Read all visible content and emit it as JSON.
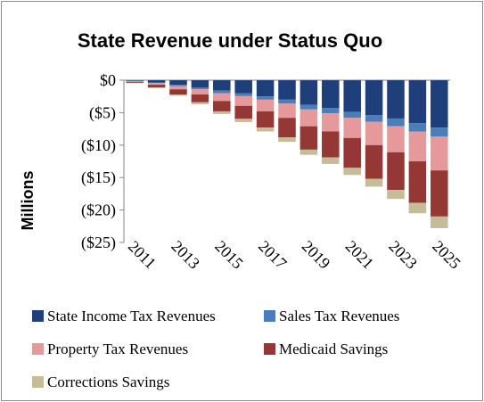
{
  "chart_data": {
    "type": "bar",
    "stacked": true,
    "title": "State Revenue under Status Quo",
    "ylabel": "Millions",
    "xlabel": "",
    "ylim": [
      -25,
      0
    ],
    "yticks": [
      0,
      -5,
      -10,
      -15,
      -20,
      -25
    ],
    "ytick_labels": [
      "$0",
      "($5)",
      "($10)",
      "($15)",
      "($20)",
      "($25)"
    ],
    "categories": [
      "2011",
      "2012",
      "2013",
      "2014",
      "2015",
      "2016",
      "2017",
      "2018",
      "2019",
      "2020",
      "2021",
      "2022",
      "2023",
      "2024",
      "2025"
    ],
    "visible_tick_labels": [
      "2011",
      "2013",
      "2015",
      "2017",
      "2019",
      "2021",
      "2023",
      "2025"
    ],
    "grid": false,
    "legend_position": "bottom",
    "series": [
      {
        "name": "State Income Tax Revenues",
        "color": "#1f3f7a",
        "values": [
          -0.1,
          -0.35,
          -0.7,
          -1.1,
          -1.6,
          -2.0,
          -2.5,
          -3.0,
          -3.8,
          -4.3,
          -4.9,
          -5.4,
          -5.9,
          -6.6,
          -7.3
        ]
      },
      {
        "name": "Sales Tax Revenues",
        "color": "#4a7ebb",
        "values": [
          -0.05,
          -0.1,
          -0.2,
          -0.3,
          -0.4,
          -0.45,
          -0.5,
          -0.6,
          -0.7,
          -0.8,
          -0.9,
          -1.0,
          -1.2,
          -1.3,
          -1.4
        ]
      },
      {
        "name": "Property Tax Revenues",
        "color": "#e6999b",
        "values": [
          -0.1,
          -0.25,
          -0.5,
          -0.8,
          -1.2,
          -1.5,
          -1.8,
          -2.2,
          -2.6,
          -2.8,
          -3.1,
          -3.6,
          -4.0,
          -4.6,
          -5.2
        ]
      },
      {
        "name": "Medicaid Savings",
        "color": "#953735",
        "values": [
          -0.15,
          -0.4,
          -0.8,
          -1.2,
          -1.6,
          -2.0,
          -2.5,
          -3.0,
          -3.6,
          -4.0,
          -4.6,
          -5.2,
          -5.8,
          -6.4,
          -7.1
        ]
      },
      {
        "name": "Corrections Savings",
        "color": "#c4bd97",
        "values": [
          -0.05,
          -0.1,
          -0.2,
          -0.3,
          -0.4,
          -0.5,
          -0.6,
          -0.7,
          -0.8,
          -1.0,
          -1.1,
          -1.2,
          -1.4,
          -1.6,
          -1.8
        ]
      }
    ]
  }
}
